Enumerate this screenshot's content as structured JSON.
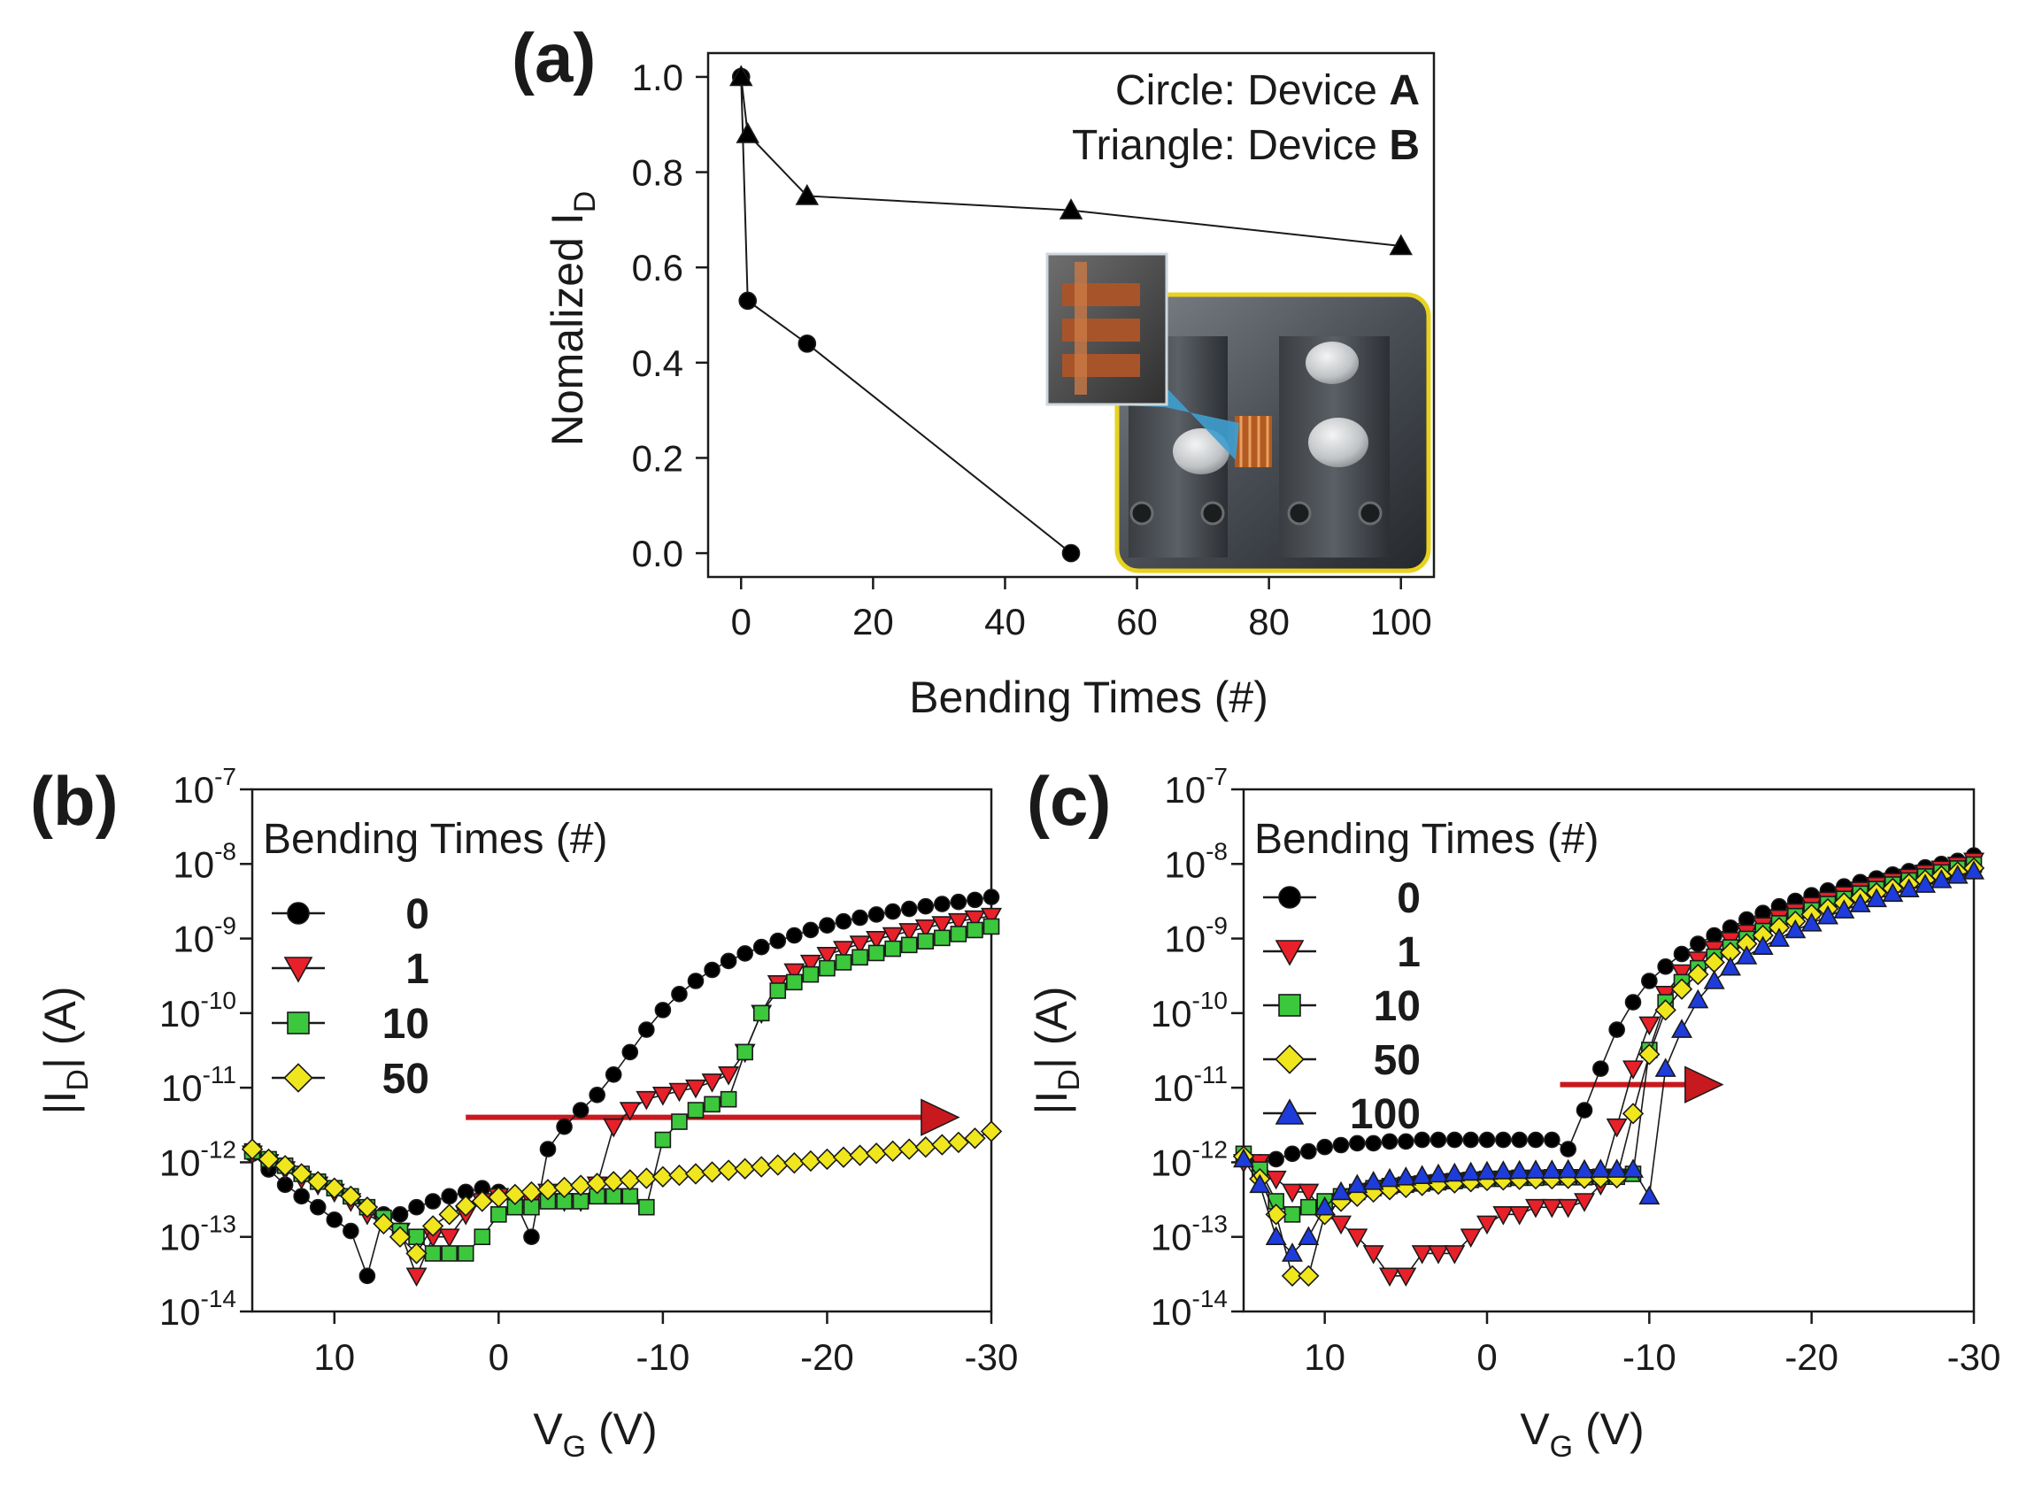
{
  "chart_data": [
    {
      "type": "line",
      "panel_label": "(a)",
      "xlabel": "Bending Times (#)",
      "ylabel_main": "Nomalized I",
      "ylabel_sub": "D",
      "xlim": [
        -5,
        105
      ],
      "ylim": [
        -0.05,
        1.05
      ],
      "xticks": [
        0,
        20,
        40,
        60,
        80,
        100
      ],
      "yticks": [
        0.0,
        0.2,
        0.4,
        0.6,
        0.8,
        1.0
      ],
      "ytick_labels": [
        "0.0",
        "0.2",
        "0.4",
        "0.6",
        "0.8",
        "1.0"
      ],
      "legend_lines": [
        {
          "text": "Circle: Device ",
          "bold": "A"
        },
        {
          "text": "Triangle: Device ",
          "bold": "B"
        }
      ],
      "inset": "photo of bending test fixture with flexible device (inset zoom)",
      "series": [
        {
          "name": "Device A",
          "marker": "circle",
          "color": "#000000",
          "x": [
            0,
            1,
            10,
            50
          ],
          "y": [
            1.0,
            0.53,
            0.44,
            0.0
          ]
        },
        {
          "name": "Device B",
          "marker": "triangle",
          "color": "#000000",
          "x": [
            0,
            1,
            10,
            50,
            100
          ],
          "y": [
            1.0,
            0.88,
            0.75,
            0.72,
            0.645
          ]
        }
      ]
    },
    {
      "type": "line",
      "panel_label": "(b)",
      "xlabel_main": "V",
      "xlabel_sub": "G",
      "xlabel_unit": " (V)",
      "ylabel_pre": "|I",
      "ylabel_sub": "D",
      "ylabel_post": "| (A)",
      "yscale": "log",
      "xlim": [
        15,
        -30
      ],
      "ylim_exp": [
        -14,
        -7
      ],
      "xticks": [
        10,
        0,
        -10,
        -20,
        -30
      ],
      "xtick_labels": [
        "10",
        "0",
        "-10",
        "-20",
        "-30"
      ],
      "ytick_exps": [
        -7,
        -8,
        -9,
        -10,
        -11,
        -12,
        -13,
        -14
      ],
      "legend_title": "Bending Times (#)",
      "arrow": {
        "x_from": 2,
        "x_to": -28,
        "y": 4e-12,
        "color": "#c8191e"
      },
      "series": [
        {
          "name": "0",
          "marker": "circle",
          "color": "#000000",
          "x": [
            15,
            14,
            13,
            12,
            11,
            10,
            9,
            8,
            7,
            6,
            5,
            4,
            3,
            2,
            1,
            0,
            -1,
            -2,
            -3,
            -4,
            -5,
            -6,
            -7,
            -8,
            -9,
            -10,
            -11,
            -12,
            -13,
            -14,
            -15,
            -16,
            -17,
            -18,
            -19,
            -20,
            -21,
            -22,
            -23,
            -24,
            -25,
            -26,
            -27,
            -28,
            -29,
            -30
          ],
          "y": [
            1.3e-12,
            8e-13,
            5e-13,
            3.5e-13,
            2.5e-13,
            1.7e-13,
            1.2e-13,
            3e-14,
            2e-13,
            2e-13,
            2.5e-13,
            3e-13,
            3.5e-13,
            4e-13,
            4.5e-13,
            4e-13,
            3e-13,
            1e-13,
            1.5e-12,
            3e-12,
            5e-12,
            8e-12,
            1.5e-11,
            3e-11,
            6e-11,
            1.1e-10,
            1.8e-10,
            2.7e-10,
            3.8e-10,
            5e-10,
            6.3e-10,
            7.7e-10,
            9.3e-10,
            1.1e-09,
            1.3e-09,
            1.5e-09,
            1.7e-09,
            1.9e-09,
            2.1e-09,
            2.3e-09,
            2.5e-09,
            2.7e-09,
            2.9e-09,
            3.1e-09,
            3.3e-09,
            3.6e-09
          ]
        },
        {
          "name": "1",
          "marker": "triangle-down",
          "color": "#e8202a",
          "x": [
            15,
            14,
            13,
            12,
            11,
            10,
            9,
            8,
            7,
            6,
            5,
            4,
            3,
            2,
            1,
            0,
            -1,
            -2,
            -3,
            -4,
            -5,
            -6,
            -7,
            -8,
            -9,
            -10,
            -11,
            -12,
            -13,
            -14,
            -15,
            -16,
            -17,
            -18,
            -19,
            -20,
            -21,
            -22,
            -23,
            -24,
            -25,
            -26,
            -27,
            -28,
            -29,
            -30
          ],
          "y": [
            1.3e-12,
            1e-12,
            8e-13,
            6e-13,
            5e-13,
            4e-13,
            3e-13,
            2e-13,
            1.5e-13,
            1.2e-13,
            3e-14,
            1e-13,
            1e-13,
            2e-13,
            3e-13,
            3.5e-13,
            3e-13,
            3e-13,
            4e-13,
            3e-13,
            3e-13,
            5e-13,
            3e-12,
            5e-12,
            7e-12,
            8e-12,
            9e-12,
            1e-11,
            1.2e-11,
            1.5e-11,
            3e-11,
            1e-10,
            2.5e-10,
            3.6e-10,
            4.7e-10,
            6e-10,
            7.2e-10,
            8.5e-10,
            9.8e-10,
            1.1e-09,
            1.25e-09,
            1.4e-09,
            1.55e-09,
            1.7e-09,
            1.85e-09,
            2e-09
          ]
        },
        {
          "name": "10",
          "marker": "square",
          "color": "#3cc83c",
          "x": [
            15,
            14,
            13,
            12,
            11,
            10,
            9,
            8,
            7,
            6,
            5,
            4,
            3,
            2,
            1,
            0,
            -1,
            -2,
            -3,
            -4,
            -5,
            -6,
            -7,
            -8,
            -9,
            -10,
            -11,
            -12,
            -13,
            -14,
            -15,
            -16,
            -17,
            -18,
            -19,
            -20,
            -21,
            -22,
            -23,
            -24,
            -25,
            -26,
            -27,
            -28,
            -29,
            -30
          ],
          "y": [
            1.4e-12,
            1.1e-12,
            9e-13,
            7e-13,
            5.5e-13,
            4.5e-13,
            3.5e-13,
            2.5e-13,
            1.8e-13,
            1.2e-13,
            1e-13,
            6e-14,
            6e-14,
            6e-14,
            1e-13,
            2e-13,
            2.5e-13,
            2.5e-13,
            3e-13,
            3e-13,
            3e-13,
            3.5e-13,
            3.5e-13,
            3.5e-13,
            2.5e-13,
            2e-12,
            3.5e-12,
            5e-12,
            6e-12,
            7e-12,
            3e-11,
            1e-10,
            2e-10,
            2.6e-10,
            3.3e-10,
            4e-10,
            4.8e-10,
            5.6e-10,
            6.4e-10,
            7.3e-10,
            8.2e-10,
            9.2e-10,
            1.02e-09,
            1.15e-09,
            1.3e-09,
            1.45e-09
          ]
        },
        {
          "name": "50",
          "marker": "diamond",
          "color": "#f0e61e",
          "x": [
            15,
            14,
            13,
            12,
            11,
            10,
            9,
            8,
            7,
            6,
            5,
            4,
            3,
            2,
            1,
            0,
            -1,
            -2,
            -3,
            -4,
            -5,
            -6,
            -7,
            -8,
            -9,
            -10,
            -11,
            -12,
            -13,
            -14,
            -15,
            -16,
            -17,
            -18,
            -19,
            -20,
            -21,
            -22,
            -23,
            -24,
            -25,
            -26,
            -27,
            -28,
            -29,
            -30
          ],
          "y": [
            1.5e-12,
            1.1e-12,
            9e-13,
            7e-13,
            5.5e-13,
            4.5e-13,
            3.5e-13,
            2.5e-13,
            1.5e-13,
            1e-13,
            6e-14,
            1.4e-13,
            2e-13,
            2.6e-13,
            3e-13,
            3.4e-13,
            3.7e-13,
            4e-13,
            4.3e-13,
            4.6e-13,
            4.9e-13,
            5.2e-13,
            5.5e-13,
            5.8e-13,
            6.1e-13,
            6.4e-13,
            6.7e-13,
            7e-13,
            7.4e-13,
            7.8e-13,
            8.2e-13,
            8.7e-13,
            9.2e-13,
            9.8e-13,
            1.04e-12,
            1.1e-12,
            1.17e-12,
            1.24e-12,
            1.32e-12,
            1.41e-12,
            1.5e-12,
            1.6e-12,
            1.72e-12,
            1.85e-12,
            2.1e-12,
            2.6e-12
          ]
        }
      ]
    },
    {
      "type": "line",
      "panel_label": "(c)",
      "xlabel_main": "V",
      "xlabel_sub": "G",
      "xlabel_unit": " (V)",
      "ylabel_pre": "|I",
      "ylabel_sub": "D",
      "ylabel_post": "| (A)",
      "yscale": "log",
      "xlim": [
        15,
        -30
      ],
      "ylim_exp": [
        -14,
        -7
      ],
      "xticks": [
        10,
        0,
        -10,
        -20,
        -30
      ],
      "xtick_labels": [
        "10",
        "0",
        "-10",
        "-20",
        "-30"
      ],
      "ytick_exps": [
        -7,
        -8,
        -9,
        -10,
        -11,
        -12,
        -13,
        -14
      ],
      "legend_title": "Bending Times (#)",
      "arrow": {
        "x_from": -4.5,
        "x_to": -14.5,
        "y": 1.1e-11,
        "color": "#c8191e"
      },
      "series": [
        {
          "name": "0",
          "marker": "circle",
          "color": "#000000",
          "x": [
            15,
            14,
            13,
            12,
            11,
            10,
            9,
            8,
            7,
            6,
            5,
            4,
            3,
            2,
            1,
            0,
            -1,
            -2,
            -3,
            -4,
            -5,
            -6,
            -7,
            -8,
            -9,
            -10,
            -11,
            -12,
            -13,
            -14,
            -15,
            -16,
            -17,
            -18,
            -19,
            -20,
            -21,
            -22,
            -23,
            -24,
            -25,
            -26,
            -27,
            -28,
            -29,
            -30
          ],
          "y": [
            1.2e-12,
            1e-12,
            1.1e-12,
            1.3e-12,
            1.4e-12,
            1.6e-12,
            1.7e-12,
            1.8e-12,
            1.8e-12,
            1.9e-12,
            1.9e-12,
            2e-12,
            2e-12,
            2e-12,
            2e-12,
            2e-12,
            2e-12,
            2e-12,
            2e-12,
            2e-12,
            1.5e-12,
            5e-12,
            1.8e-11,
            6e-11,
            1.4e-10,
            2.7e-10,
            4.2e-10,
            6.2e-10,
            8.5e-10,
            1.1e-09,
            1.4e-09,
            1.8e-09,
            2.2e-09,
            2.7e-09,
            3.2e-09,
            3.8e-09,
            4.4e-09,
            5e-09,
            5.7e-09,
            6.4e-09,
            7.2e-09,
            8e-09,
            9e-09,
            1e-08,
            1.1e-08,
            1.3e-08
          ]
        },
        {
          "name": "1",
          "marker": "triangle-down",
          "color": "#e8202a",
          "x": [
            15,
            14,
            13,
            12,
            11,
            10,
            9,
            8,
            7,
            6,
            5,
            4,
            3,
            2,
            1,
            0,
            -1,
            -2,
            -3,
            -4,
            -5,
            -6,
            -7,
            -8,
            -9,
            -10,
            -11,
            -12,
            -13,
            -14,
            -15,
            -16,
            -17,
            -18,
            -19,
            -20,
            -21,
            -22,
            -23,
            -24,
            -25,
            -26,
            -27,
            -28,
            -29,
            -30
          ],
          "y": [
            1e-12,
            1e-12,
            6e-13,
            4e-13,
            4e-13,
            2e-13,
            1.5e-13,
            1e-13,
            6e-14,
            3e-14,
            3e-14,
            6e-14,
            6e-14,
            6e-14,
            1e-13,
            1.5e-13,
            2e-13,
            2e-13,
            2.5e-13,
            2.5e-13,
            2.5e-13,
            3e-13,
            5e-13,
            3e-12,
            1.8e-11,
            7e-11,
            1.8e-10,
            3.5e-10,
            5.2e-10,
            7.2e-10,
            9.5e-10,
            1.2e-09,
            1.5e-09,
            1.9e-09,
            2.3e-09,
            2.8e-09,
            3.3e-09,
            3.9e-09,
            4.5e-09,
            5.2e-09,
            5.9e-09,
            6.7e-09,
            7.6e-09,
            8.6e-09,
            9.7e-09,
            1.1e-08
          ]
        },
        {
          "name": "10",
          "marker": "square",
          "color": "#3cc83c",
          "x": [
            15,
            14,
            13,
            12,
            11,
            10,
            9,
            8,
            7,
            6,
            5,
            4,
            3,
            2,
            1,
            0,
            -1,
            -2,
            -3,
            -4,
            -5,
            -6,
            -7,
            -8,
            -9,
            -10,
            -11,
            -12,
            -13,
            -14,
            -15,
            -16,
            -17,
            -18,
            -19,
            -20,
            -21,
            -22,
            -23,
            -24,
            -25,
            -26,
            -27,
            -28,
            -29,
            -30
          ],
          "y": [
            1.3e-12,
            8e-13,
            3e-13,
            2e-13,
            2.5e-13,
            3e-13,
            3.5e-13,
            4e-13,
            4.5e-13,
            4.8e-13,
            5e-13,
            5.2e-13,
            5.4e-13,
            5.6e-13,
            5.8e-13,
            6e-13,
            6e-13,
            6.2e-13,
            6.2e-13,
            6.3e-13,
            6.3e-13,
            6.3e-13,
            6.4e-13,
            6.4e-13,
            7e-13,
            3.2e-11,
            1.4e-10,
            2.6e-10,
            4e-10,
            5.7e-10,
            7.6e-10,
            9.9e-10,
            1.26e-09,
            1.6e-09,
            2e-09,
            2.4e-09,
            2.9e-09,
            3.4e-09,
            4e-09,
            4.6e-09,
            5.3e-09,
            6e-09,
            6.8e-09,
            7.7e-09,
            8.7e-09,
            9.8e-09
          ]
        },
        {
          "name": "50",
          "marker": "diamond",
          "color": "#f0e61e",
          "x": [
            15,
            14,
            13,
            12,
            11,
            10,
            9,
            8,
            7,
            6,
            5,
            4,
            3,
            2,
            1,
            0,
            -1,
            -2,
            -3,
            -4,
            -5,
            -6,
            -7,
            -8,
            -9,
            -10,
            -11,
            -12,
            -13,
            -14,
            -15,
            -16,
            -17,
            -18,
            -19,
            -20,
            -21,
            -22,
            -23,
            -24,
            -25,
            -26,
            -27,
            -28,
            -29,
            -30
          ],
          "y": [
            1.2e-12,
            6e-13,
            2e-13,
            3e-14,
            3e-14,
            2e-13,
            3e-13,
            3.5e-13,
            4e-13,
            4.3e-13,
            4.6e-13,
            4.9e-13,
            5.1e-13,
            5.3e-13,
            5.5e-13,
            5.7e-13,
            5.8e-13,
            5.9e-13,
            6e-13,
            6e-13,
            6.1e-13,
            6.1e-13,
            6.2e-13,
            6.2e-13,
            4.5e-12,
            2.8e-11,
            1.1e-10,
            2.1e-10,
            3.3e-10,
            4.8e-10,
            6.5e-10,
            8.5e-10,
            1.1e-09,
            1.4e-09,
            1.7e-09,
            2.1e-09,
            2.5e-09,
            3e-09,
            3.5e-09,
            4.1e-09,
            4.7e-09,
            5.4e-09,
            6.1e-09,
            6.9e-09,
            7.8e-09,
            8.8e-09
          ]
        },
        {
          "name": "100",
          "marker": "triangle",
          "color": "#1e3cdc",
          "x": [
            15,
            14,
            13,
            12,
            11,
            10,
            9,
            8,
            7,
            6,
            5,
            4,
            3,
            2,
            1,
            0,
            -1,
            -2,
            -3,
            -4,
            -5,
            -6,
            -7,
            -8,
            -9,
            -10,
            -11,
            -12,
            -13,
            -14,
            -15,
            -16,
            -17,
            -18,
            -19,
            -20,
            -21,
            -22,
            -23,
            -24,
            -25,
            -26,
            -27,
            -28,
            -29,
            -30
          ],
          "y": [
            1.1e-12,
            5e-13,
            1e-13,
            6e-14,
            1e-13,
            2.5e-13,
            4e-13,
            5e-13,
            5.5e-13,
            6e-13,
            6.3e-13,
            6.6e-13,
            6.9e-13,
            7.1e-13,
            7.3e-13,
            7.5e-13,
            7.6e-13,
            7.7e-13,
            7.8e-13,
            7.8e-13,
            7.9e-13,
            7.9e-13,
            8e-13,
            8e-13,
            8e-13,
            3.5e-13,
            1.8e-11,
            6e-11,
            1.5e-10,
            2.7e-10,
            4.1e-10,
            5.8e-10,
            7.8e-10,
            1e-09,
            1.3e-09,
            1.6e-09,
            2e-09,
            2.4e-09,
            2.9e-09,
            3.4e-09,
            4e-09,
            4.6e-09,
            5.3e-09,
            6.1e-09,
            7e-09,
            8e-09
          ]
        }
      ]
    }
  ]
}
